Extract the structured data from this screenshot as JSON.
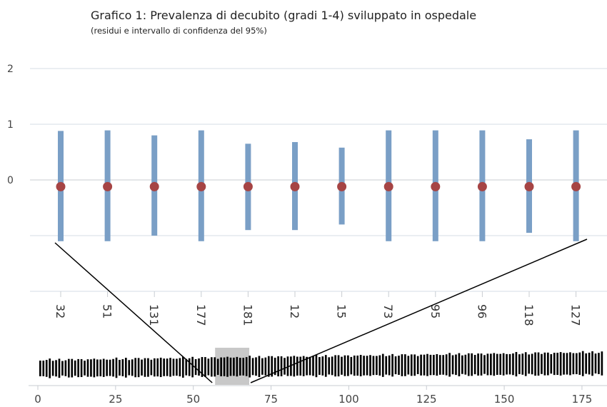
{
  "chart_data": {
    "type": "errorbar",
    "title": "Grafico 1: Prevalenza di decubito (gradi 1-4) sviluppato in ospedale",
    "subtitle": "(residui e intervallo di confidenza del 95%)",
    "y_ticks": [
      "2",
      "1",
      "0"
    ],
    "ylim": [
      -2,
      2
    ],
    "categories": [
      "32",
      "51",
      "131",
      "177",
      "181",
      "12",
      "15",
      "73",
      "95",
      "96",
      "118",
      "127"
    ],
    "points": [
      {
        "id": "32",
        "value": -0.12,
        "ci_low": -1.1,
        "ci_high": 0.88
      },
      {
        "id": "51",
        "value": -0.12,
        "ci_low": -1.1,
        "ci_high": 0.89
      },
      {
        "id": "131",
        "value": -0.12,
        "ci_low": -1.0,
        "ci_high": 0.8
      },
      {
        "id": "177",
        "value": -0.12,
        "ci_low": -1.1,
        "ci_high": 0.89
      },
      {
        "id": "181",
        "value": -0.12,
        "ci_low": -0.9,
        "ci_high": 0.65
      },
      {
        "id": "12",
        "value": -0.12,
        "ci_low": -0.9,
        "ci_high": 0.68
      },
      {
        "id": "15",
        "value": -0.12,
        "ci_low": -0.8,
        "ci_high": 0.58
      },
      {
        "id": "73",
        "value": -0.12,
        "ci_low": -1.1,
        "ci_high": 0.89
      },
      {
        "id": "95",
        "value": -0.12,
        "ci_low": -1.1,
        "ci_high": 0.89
      },
      {
        "id": "96",
        "value": -0.12,
        "ci_low": -1.1,
        "ci_high": 0.89
      },
      {
        "id": "118",
        "value": -0.12,
        "ci_low": -0.95,
        "ci_high": 0.73
      },
      {
        "id": "127",
        "value": -0.12,
        "ci_low": -1.1,
        "ci_high": 0.89
      }
    ],
    "navigator": {
      "x_ticks": [
        "0",
        "25",
        "50",
        "75",
        "100",
        "125",
        "150",
        "175"
      ],
      "xlim": [
        0,
        178
      ],
      "selection_range": [
        57,
        68
      ]
    },
    "colors": {
      "point": "#a64444",
      "ci_bar": "#7a9fc6",
      "grid": "#d6dde6",
      "navigator_bar": "#000000",
      "selection": "#c8c8c8"
    }
  }
}
